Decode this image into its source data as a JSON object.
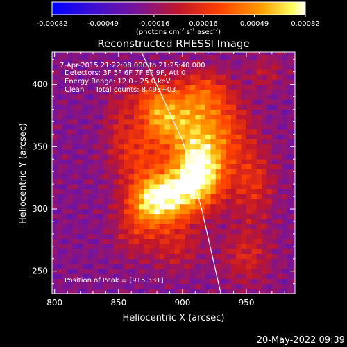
{
  "chart_data": {
    "type": "heatmap",
    "title": "Reconstructed RHESSI Image",
    "xlabel": "Heliocentric X (arcsec)",
    "ylabel": "Heliocentric Y (arcsec)",
    "xlim": [
      798,
      988
    ],
    "ylim": [
      232,
      426
    ],
    "x_ticks": [
      800,
      850,
      900,
      950
    ],
    "y_ticks": [
      250,
      300,
      350,
      400
    ],
    "x_tick_labels": [
      "800",
      "850",
      "900",
      "950"
    ],
    "y_tick_labels": [
      "250",
      "300",
      "350",
      "400"
    ],
    "colorbar": {
      "ticks": [
        -0.00082,
        -0.00049,
        -0.00016,
        0.00016,
        0.00049,
        0.00082
      ],
      "tick_labels": [
        "-0.00082",
        "-0.00049",
        "-0.00016",
        "0.00016",
        "0.00049",
        "0.00082"
      ],
      "units_label": "(photons cm^-2 s^-1 asec^-2)",
      "range": [
        -0.00082,
        0.00082
      ]
    },
    "peak": {
      "x": 915,
      "y": 331
    },
    "limb_line": [
      [
        868,
        426
      ],
      [
        900,
        355
      ],
      [
        915,
        300
      ],
      [
        930,
        232
      ]
    ],
    "annotations": [
      " 7-Apr-2015 21:22:08.000 to 21:25:40.000",
      "Detectors: 3F 5F 6F 7F 8F 9F, Att 0",
      "Energy Range: 12.0 - 25.0 keV",
      "Clean     Total counts: 8.49E+03"
    ],
    "peak_label": "Position of Peak = [915,331]",
    "grid": false
  },
  "footer": {
    "timestamp": "20-May-2022 09:39"
  },
  "colors": {
    "colormap": [
      "#0000ff",
      "#6a14a8",
      "#b01a3c",
      "#ff3000",
      "#ff9a00",
      "#ffff40",
      "#ffffff"
    ],
    "limb_line": "#ffffff",
    "background": "#000000"
  }
}
